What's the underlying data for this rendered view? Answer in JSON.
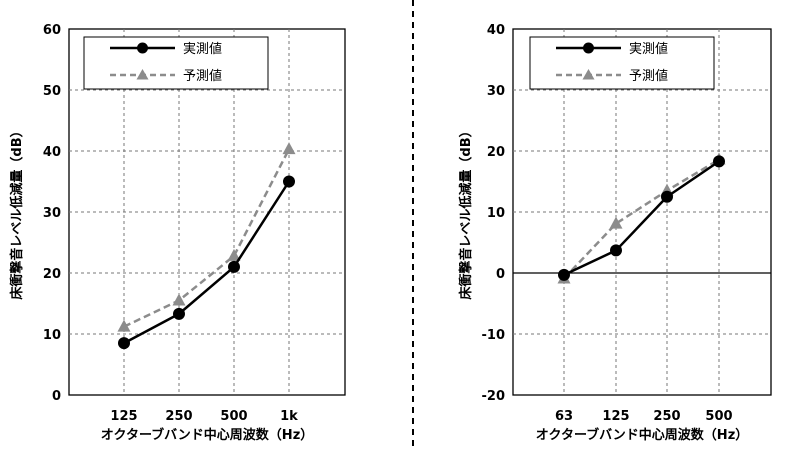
{
  "chart_data": [
    {
      "type": "line",
      "categories": [
        "125",
        "250",
        "500",
        "1k"
      ],
      "xlabel": "オクターブバンド中心周波数（Hz）",
      "ylabel": "床衝撃音レベル低減量（dB）",
      "ylim": [
        0,
        60
      ],
      "yticks": [
        0,
        10,
        20,
        30,
        40,
        50,
        60
      ],
      "grid": true,
      "legend_position": "top-left",
      "series": [
        {
          "name": "実測値",
          "values": [
            8.5,
            13.3,
            21,
            35
          ],
          "style": "solid",
          "marker": "circle",
          "color": "#000000"
        },
        {
          "name": "予測値",
          "values": [
            11.2,
            15.5,
            22.8,
            40.3
          ],
          "style": "dashed",
          "marker": "triangle",
          "color": "#8c8c8c"
        }
      ]
    },
    {
      "type": "line",
      "categories": [
        "63",
        "125",
        "250",
        "500"
      ],
      "xlabel": "オクターブバンド中心周波数（Hz）",
      "ylabel": "床衝撃音レベル低減量（dB）",
      "ylim": [
        -20,
        40
      ],
      "yticks": [
        -20,
        -10,
        0,
        10,
        20,
        30,
        40
      ],
      "grid": true,
      "legend_position": "top-left",
      "series": [
        {
          "name": "実測値",
          "values": [
            -0.3,
            3.7,
            12.5,
            18.3
          ],
          "style": "solid",
          "marker": "circle",
          "color": "#000000"
        },
        {
          "name": "予測値",
          "values": [
            -0.9,
            8.1,
            13.5,
            18.6
          ],
          "style": "dashed",
          "marker": "triangle",
          "color": "#8c8c8c"
        }
      ]
    }
  ]
}
